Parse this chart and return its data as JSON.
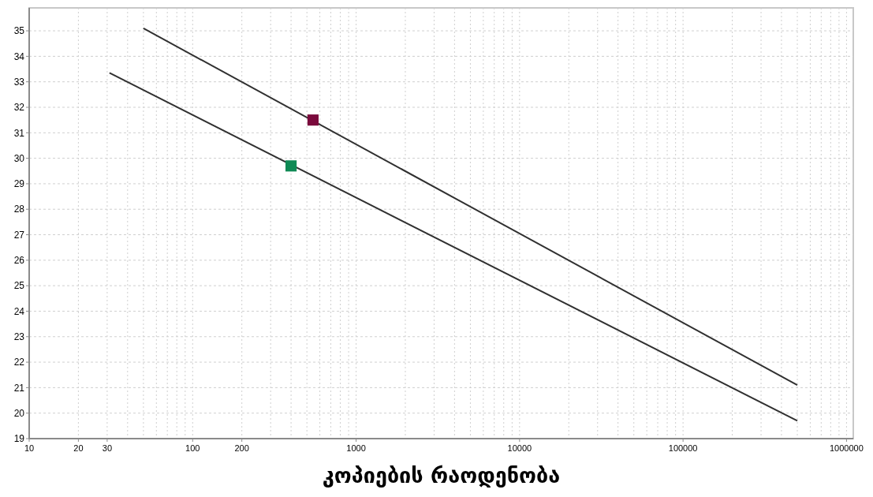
{
  "chart_data": {
    "type": "line",
    "xlabel": "კოპიების რაოდენობა",
    "log": "x",
    "grid": true,
    "marker": "none",
    "line_style": "solid",
    "xlim": [
      10,
      1100000
    ],
    "ylim": [
      19,
      35.9
    ],
    "xticks": [
      10,
      20,
      30,
      {
        "value": 40,
        "label": null
      },
      {
        "value": 50,
        "label": null
      },
      {
        "value": 60,
        "label": null
      },
      {
        "value": 70,
        "label": null
      },
      {
        "value": 80,
        "label": null
      },
      {
        "value": 90,
        "label": null
      },
      100,
      200,
      {
        "value": 300,
        "label": null
      },
      {
        "value": 400,
        "label": null
      },
      {
        "value": 500,
        "label": null
      },
      {
        "value": 600,
        "label": null
      },
      {
        "value": 700,
        "label": null
      },
      {
        "value": 800,
        "label": null
      },
      {
        "value": 900,
        "label": null
      },
      1000,
      {
        "value": 2000,
        "label": null
      },
      {
        "value": 3000,
        "label": null
      },
      {
        "value": 4000,
        "label": null
      },
      {
        "value": 5000,
        "label": null
      },
      {
        "value": 6000,
        "label": null
      },
      {
        "value": 7000,
        "label": null
      },
      {
        "value": 8000,
        "label": null
      },
      {
        "value": 9000,
        "label": null
      },
      10000,
      {
        "value": 20000,
        "label": null
      },
      {
        "value": 30000,
        "label": null
      },
      {
        "value": 40000,
        "label": null
      },
      {
        "value": 50000,
        "label": null
      },
      {
        "value": 60000,
        "label": null
      },
      {
        "value": 70000,
        "label": null
      },
      {
        "value": 80000,
        "label": null
      },
      {
        "value": 90000,
        "label": null
      },
      100000,
      {
        "value": 200000,
        "label": null
      },
      {
        "value": 300000,
        "label": null
      },
      {
        "value": 400000,
        "label": null
      },
      {
        "value": 500000,
        "label": null
      },
      {
        "value": 600000,
        "label": null
      },
      {
        "value": 700000,
        "label": null
      },
      {
        "value": 800000,
        "label": null
      },
      {
        "value": 900000,
        "label": null
      },
      1000000
    ],
    "yticks": [
      19,
      20,
      21,
      22,
      23,
      24,
      25,
      26,
      27,
      28,
      29,
      30,
      31,
      32,
      33,
      34,
      35
    ],
    "series": [
      {
        "color": "#303030",
        "x": [
          50,
          500000
        ],
        "values": [
          35.1,
          21.1
        ]
      },
      {
        "color": "#303030",
        "x": [
          31,
          500000
        ],
        "values": [
          33.35,
          19.7
        ]
      },
      {
        "type": "scatter",
        "marker": "square",
        "color": "#7a0a3c",
        "x": [
          545
        ],
        "values": [
          31.5
        ]
      },
      {
        "type": "scatter",
        "marker": "square",
        "color": "#0f8a55",
        "x": [
          400
        ],
        "values": [
          29.7
        ]
      }
    ]
  }
}
